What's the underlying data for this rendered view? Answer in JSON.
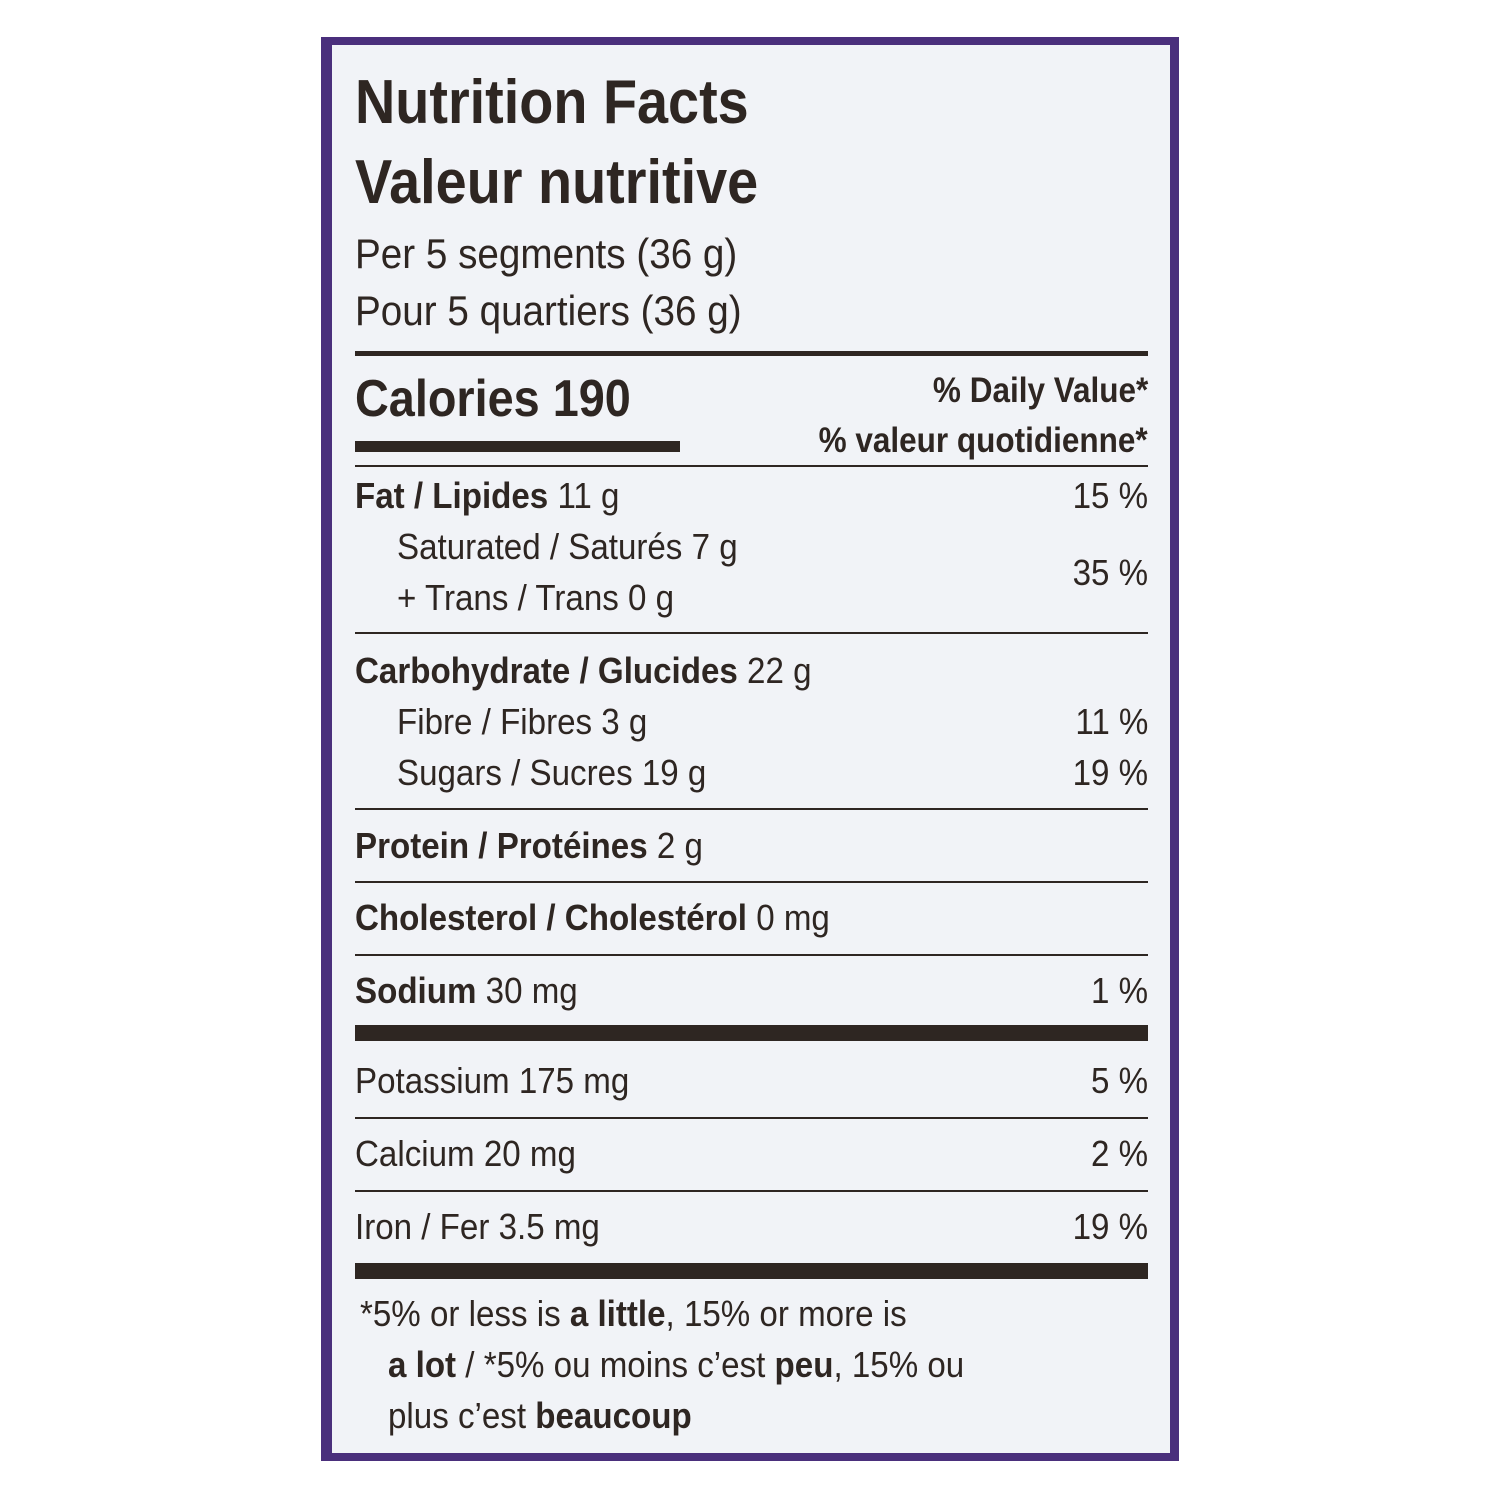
{
  "label": {
    "title_en": "Nutrition Facts",
    "title_fr": "Valeur nutritive",
    "serving_en": "Per 5 segments (36 g)",
    "serving_fr": "Pour 5 quartiers (36 g)",
    "calories_label": "Calories",
    "calories_value": "190",
    "dv_header_en": "% Daily Value",
    "dv_header_fr": "% valeur quotidienne",
    "asterisk": "*",
    "fat": {
      "label": "Fat / Lipides",
      "amount": "11 g",
      "dv": "15 %"
    },
    "saturated": {
      "label": "Saturated / Saturés",
      "amount": "7 g"
    },
    "trans": {
      "label": "+ Trans / Trans",
      "amount": "0 g"
    },
    "sat_trans_dv": "35 %",
    "carbohydrate": {
      "label": "Carbohydrate / Glucides",
      "amount": "22 g"
    },
    "fibre": {
      "label": "Fibre / Fibres",
      "amount": "3 g",
      "dv": "11 %"
    },
    "sugars": {
      "label": "Sugars / Sucres",
      "amount": "19 g",
      "dv": "19 %"
    },
    "protein": {
      "label": "Protein / Protéines",
      "amount": "2 g"
    },
    "cholesterol": {
      "label": "Cholesterol / Cholestérol",
      "amount": "0 mg"
    },
    "sodium": {
      "label": "Sodium",
      "amount": "30 mg",
      "dv": "1 %"
    },
    "potassium": {
      "label": "Potassium",
      "amount": "175 mg",
      "dv": "5 %"
    },
    "calcium": {
      "label": "Calcium",
      "amount": "20 mg",
      "dv": "2 %"
    },
    "iron": {
      "label": "Iron / Fer",
      "amount": "3.5 mg",
      "dv": "19 %"
    },
    "footnote": {
      "l1_a": "*5% or less is ",
      "l1_b": "a little",
      "l1_c": ", 15% or more is",
      "l2_a": "a lot",
      "l2_b": " / *5% ou moins c’est ",
      "l2_c": "peu",
      "l2_d": ", 15% ou",
      "l3_a": "plus c’est ",
      "l3_b": "beaucoup"
    }
  },
  "colors": {
    "frame": "#4a2f7c",
    "panel": "#f1f3f7",
    "ink": "#2e2622"
  }
}
